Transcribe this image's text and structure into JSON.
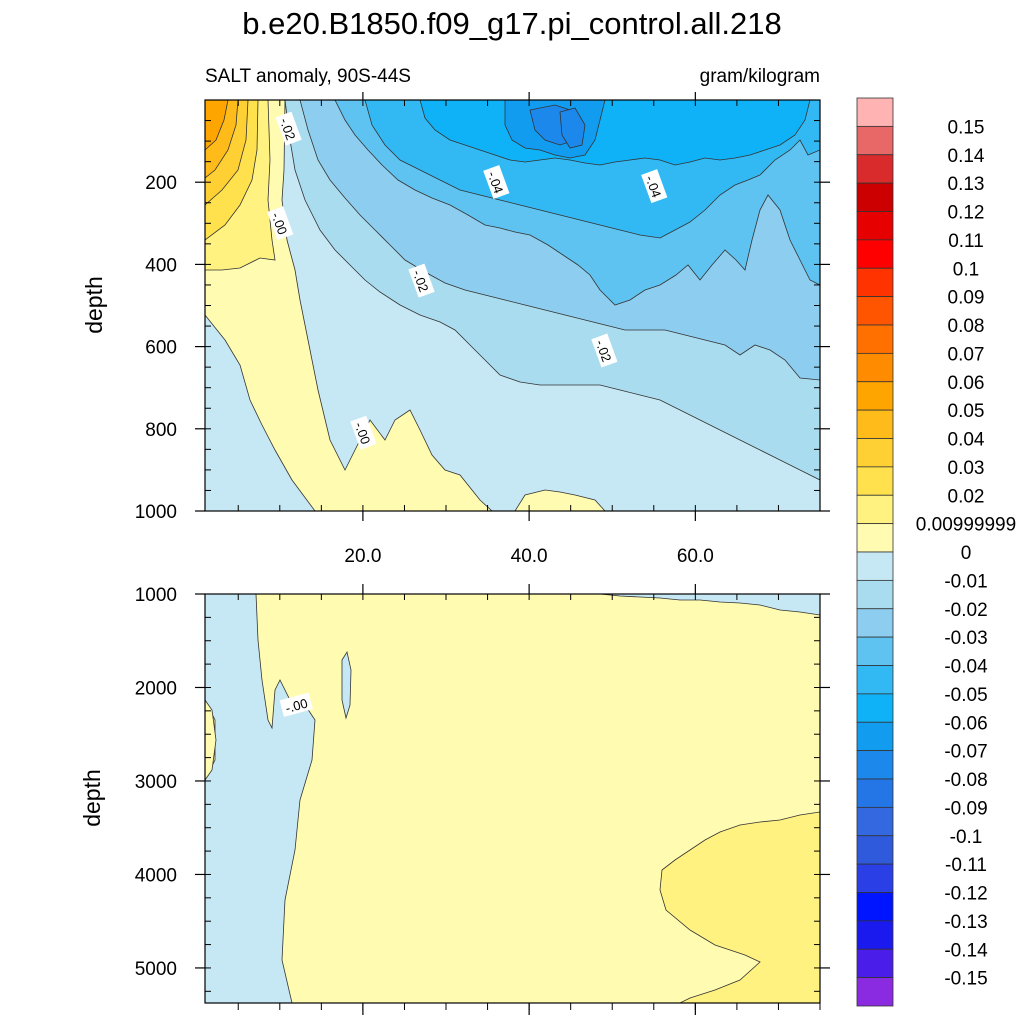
{
  "chart_data": {
    "type": "contour",
    "title": "b.e20.B1850.f09_g17.pi_control.all.218",
    "left_subtitle": "SALT anomaly, 90S-44S",
    "right_subtitle": "gram/kilogram",
    "xlabel": "",
    "x_ticks": [
      "20.0",
      "40.0",
      "60.0"
    ],
    "x_tick_values": [
      20,
      40,
      60
    ],
    "xlim": [
      1,
      75
    ],
    "panels": [
      {
        "ylabel": "depth",
        "ylim": [
          0,
          1000
        ],
        "y_ticks": [
          "200",
          "400",
          "600",
          "800",
          "1000"
        ],
        "y_tick_values": [
          200,
          400,
          600,
          800,
          1000
        ],
        "contour_labels": [
          {
            "text": "-.02",
            "x": 11,
            "y": 70
          },
          {
            "text": "-.00",
            "x": 10,
            "y": 300
          },
          {
            "text": "-.04",
            "x": 36,
            "y": 200
          },
          {
            "text": "-.04",
            "x": 55,
            "y": 210
          },
          {
            "text": "-.02",
            "x": 27,
            "y": 440
          },
          {
            "text": "-.02",
            "x": 49,
            "y": 610
          },
          {
            "text": "-.00",
            "x": 20,
            "y": 810
          }
        ]
      },
      {
        "ylabel": "depth",
        "ylim": [
          1000,
          5375
        ],
        "y_ticks": [
          "1000",
          "2000",
          "3000",
          "4000",
          "5000"
        ],
        "y_tick_values": [
          1000,
          2000,
          3000,
          4000,
          5000
        ],
        "contour_labels": [
          {
            "text": "-.00",
            "x": 12,
            "y": 2190
          }
        ]
      }
    ],
    "colorbar": {
      "labels": [
        "0.15",
        "0.14",
        "0.13",
        "0.12",
        "0.11",
        "0.1",
        "0.09",
        "0.08",
        "0.07",
        "0.06",
        "0.05",
        "0.04",
        "0.03",
        "0.02",
        "0.00999999",
        "0",
        "-0.01",
        "-0.02",
        "-0.03",
        "-0.04",
        "-0.05",
        "-0.06",
        "-0.07",
        "-0.08",
        "-0.09",
        "-0.1",
        "-0.11",
        "-0.12",
        "-0.13",
        "-0.14",
        "-0.15"
      ],
      "colors": [
        "#ffb3b3",
        "#e86868",
        "#d92b2b",
        "#cc0000",
        "#e60000",
        "#ff0000",
        "#ff3300",
        "#ff5500",
        "#ff7000",
        "#ff8c00",
        "#ffa500",
        "#ffbb1a",
        "#ffd033",
        "#ffe14d",
        "#fff280",
        "#fffbb0",
        "#c6e8f5",
        "#aadcf0",
        "#8dcdef",
        "#5ec3f0",
        "#32b9f3",
        "#10b2f7",
        "#129cf0",
        "#1d88ec",
        "#2476e6",
        "#3368e0",
        "#2f5adb",
        "#2a3fe6",
        "#0015ff",
        "#1a1aee",
        "#4a1ee8",
        "#8a2be2"
      ]
    },
    "colors": {
      "pos_001": "#fffbb0",
      "pos_002": "#fff280",
      "pos_003": "#ffe14d",
      "pos_004": "#ffd033",
      "pos_005": "#ffbb1a",
      "pos_006": "#ffa500",
      "neg_001": "#c6e8f5",
      "neg_002": "#aadcf0",
      "neg_003": "#8dcdef",
      "neg_004": "#5ec3f0",
      "neg_005": "#32b9f3",
      "neg_006": "#10b2f7",
      "neg_007": "#129cf0",
      "neg_008": "#1d88ec"
    }
  }
}
